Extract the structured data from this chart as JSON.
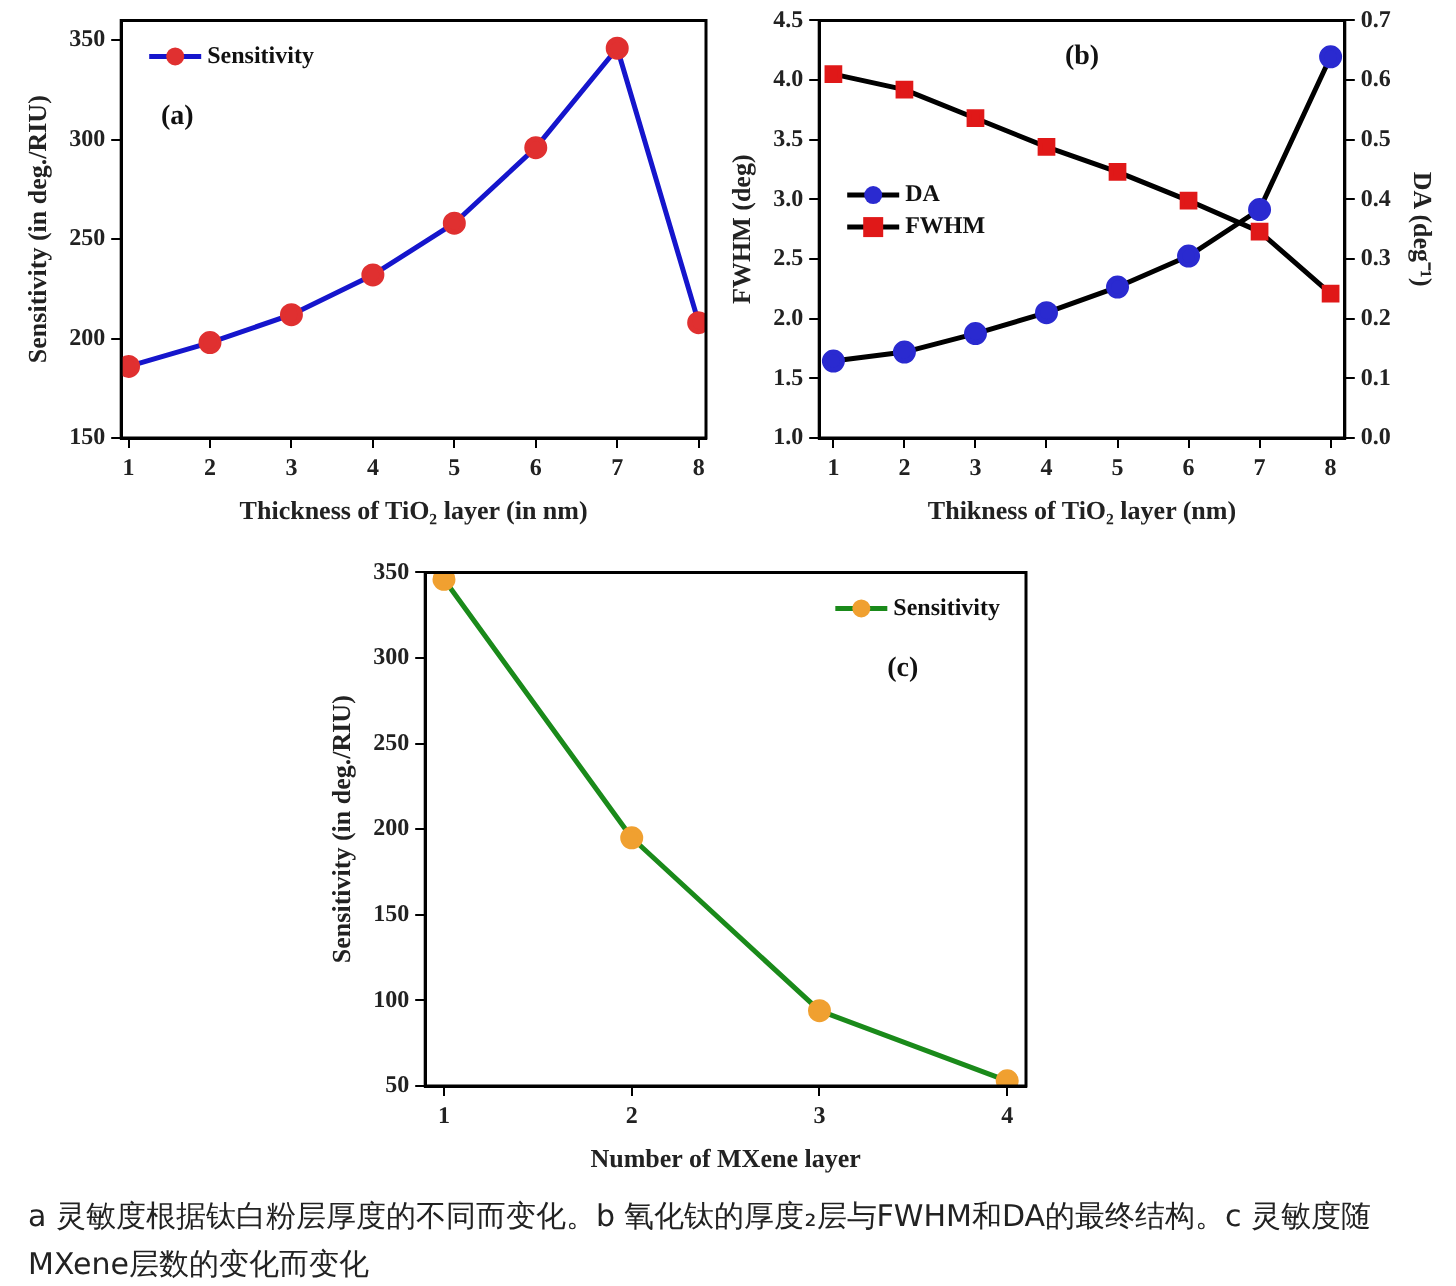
{
  "chart_data": [
    {
      "type": "line",
      "xlabel": "Thickness of TiO₂ layer (in nm)",
      "ylabel": "Sensitivity (in deg./RIU)",
      "annotations": [
        "(a)"
      ],
      "x": [
        1,
        2,
        3,
        4,
        5,
        6,
        7,
        8
      ],
      "xlim": [
        0.91,
        8.09
      ],
      "xticks": [
        1,
        2,
        3,
        4,
        5,
        6,
        7,
        8
      ],
      "ylim": [
        150,
        360
      ],
      "yticks": [
        150,
        200,
        250,
        300,
        350
      ],
      "legend": "top left",
      "marker": "circle",
      "series": [
        {
          "name": "Sensitivity",
          "color": "#1515cc",
          "colors": [
            "#e03030",
            "#e03030",
            "#e03030",
            "#e03030",
            "#e03030",
            "#e03030",
            "#e03030",
            "#e03030"
          ],
          "values": [
            186,
            198,
            212,
            232,
            258,
            296,
            346,
            208
          ]
        }
      ]
    },
    {
      "type": "line",
      "xlabel": "Thikness of TiO₂ layer (nm)",
      "ylabel": "FWHM (deg)",
      "y2label": "DA (deg⁻¹)",
      "annotations": [
        "(b)"
      ],
      "x": [
        1,
        2,
        3,
        4,
        5,
        6,
        7,
        8
      ],
      "xlim": [
        0.8,
        8.2
      ],
      "xticks": [
        1,
        2,
        3,
        4,
        5,
        6,
        7,
        8
      ],
      "ylim": [
        1,
        4.5
      ],
      "yticks": [
        {
          "value": 1,
          "label": "1.0"
        },
        1.5,
        {
          "value": 2,
          "label": "2.0"
        },
        2.5,
        {
          "value": 3,
          "label": "3.0"
        },
        3.5,
        {
          "value": 4,
          "label": "4.0"
        },
        4.5
      ],
      "y2lim": [
        0,
        0.7
      ],
      "y2ticks": [
        {
          "value": 0,
          "label": "0.0"
        },
        0.1,
        0.2,
        0.3,
        0.4,
        0.5,
        0.6,
        0.7
      ],
      "legend": "left",
      "series": [
        {
          "name": "DA",
          "axis": "y2",
          "marker": "circle",
          "color": "#000000",
          "colors": [
            "#2a2ad0",
            "#2a2ad0",
            "#2a2ad0",
            "#2a2ad0",
            "#2a2ad0",
            "#2a2ad0",
            "#2a2ad0",
            "#2a2ad0"
          ],
          "values": [
            0.129,
            0.144,
            0.175,
            0.21,
            0.253,
            0.305,
            0.383,
            0.639
          ]
        },
        {
          "name": "FWHM",
          "marker": "square",
          "color": "#000000",
          "colors": [
            "#e01818",
            "#e01818",
            "#e01818",
            "#e01818",
            "#e01818",
            "#e01818",
            "#e01818",
            "#e01818"
          ],
          "values": [
            4.05,
            3.92,
            3.68,
            3.44,
            3.23,
            2.99,
            2.73,
            2.21
          ]
        }
      ]
    },
    {
      "type": "line",
      "xlabel": "Number of MXene layer",
      "ylabel": "Sensitivity (in deg./RIU)",
      "annotations": [
        "(c)",
        "a 灵敏度根据钛白粉层厚度的不同而变化。b 氧化钛的厚度₂层与FWHM和DA的最终结构。c 灵敏度随MXene层数的变化而变化"
      ],
      "x": [
        1,
        2,
        3,
        4
      ],
      "xlim": [
        0.9,
        4.1
      ],
      "xticks": [
        1,
        2,
        3,
        4
      ],
      "ylim": [
        50,
        350
      ],
      "yticks": [
        50,
        100,
        150,
        200,
        250,
        300,
        350
      ],
      "legend": "top right",
      "marker": "circle",
      "series": [
        {
          "name": "Sensitivity",
          "color": "#1a8a1a",
          "colors": [
            "#f0a030",
            "#f0a030",
            "#f0a030",
            "#f0a030"
          ],
          "values": [
            346,
            195,
            94,
            53
          ]
        }
      ]
    }
  ]
}
